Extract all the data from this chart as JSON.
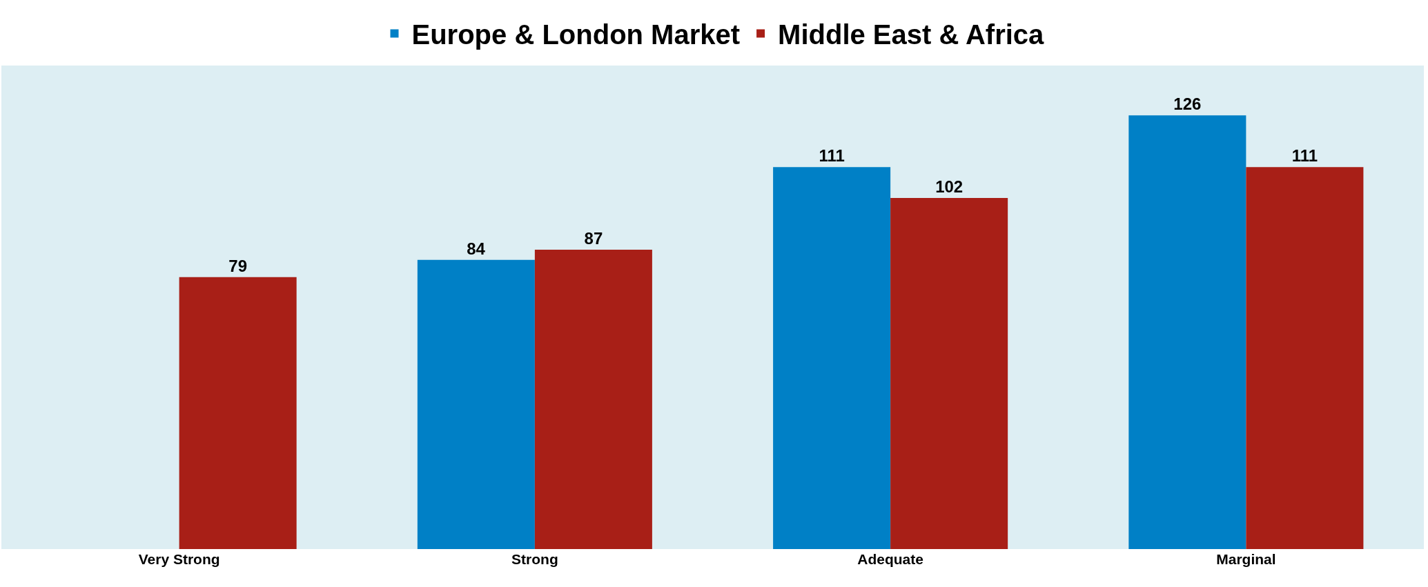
{
  "chart_data": {
    "type": "bar",
    "categories": [
      "Very Strong",
      "Strong",
      "Adequate",
      "Marginal"
    ],
    "series": [
      {
        "name": "Europe & London Market",
        "color": "#0080c6",
        "values": [
          null,
          84,
          111,
          126
        ]
      },
      {
        "name": "Middle East & Africa",
        "color": "#a81f17",
        "values": [
          79,
          87,
          102,
          111
        ]
      }
    ],
    "data_labels": true,
    "legend": "top",
    "grid": false,
    "tick_labels": "x"
  }
}
